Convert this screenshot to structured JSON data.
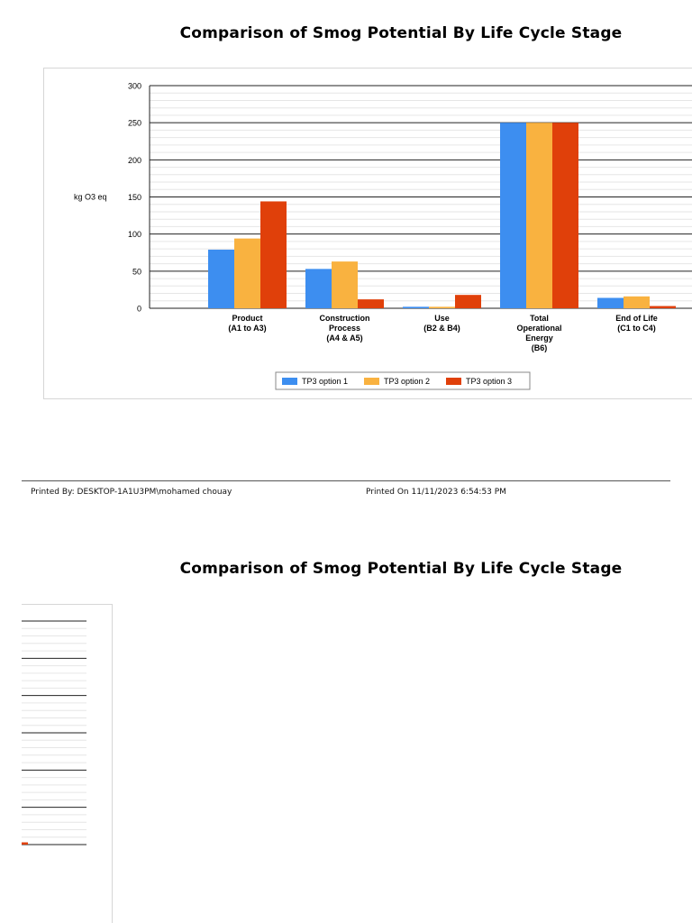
{
  "pages": [
    {
      "title": "Comparison of Smog Potential By Life Cycle Stage"
    },
    {
      "title": "Comparison of Smog Potential By Life Cycle Stage"
    }
  ],
  "footer": {
    "printed_by": "Printed By: DESKTOP-1A1U3PM\\mohamed chouay",
    "printed_on": "Printed On 11/11/2023 6:54:53 PM"
  },
  "chart_data": {
    "type": "bar",
    "title": "",
    "ylabel": "kg O3 eq",
    "xlabel": "",
    "ylim": [
      0,
      300
    ],
    "yticks": [
      0,
      50,
      100,
      150,
      200,
      250,
      300
    ],
    "grid": true,
    "legend_position": "bottom",
    "categories": [
      [
        "Product",
        "(A1 to A3)"
      ],
      [
        "Construction",
        "Process",
        "(A4 & A5)"
      ],
      [
        "Use",
        "(B2 & B4)"
      ],
      [
        "Total",
        "Operational",
        "Energy",
        "(B6)"
      ],
      [
        "End of Life",
        "(C1 to C4)"
      ]
    ],
    "series": [
      {
        "name": "TP3 option 1",
        "color": "#3d8ef0",
        "values": [
          79,
          53,
          2,
          250,
          14
        ]
      },
      {
        "name": "TP3 option 2",
        "color": "#f9b240",
        "values": [
          94,
          63,
          2,
          250,
          16
        ]
      },
      {
        "name": "TP3 option 3",
        "color": "#e0400a",
        "values": [
          144,
          12,
          18,
          250,
          3
        ]
      }
    ]
  }
}
